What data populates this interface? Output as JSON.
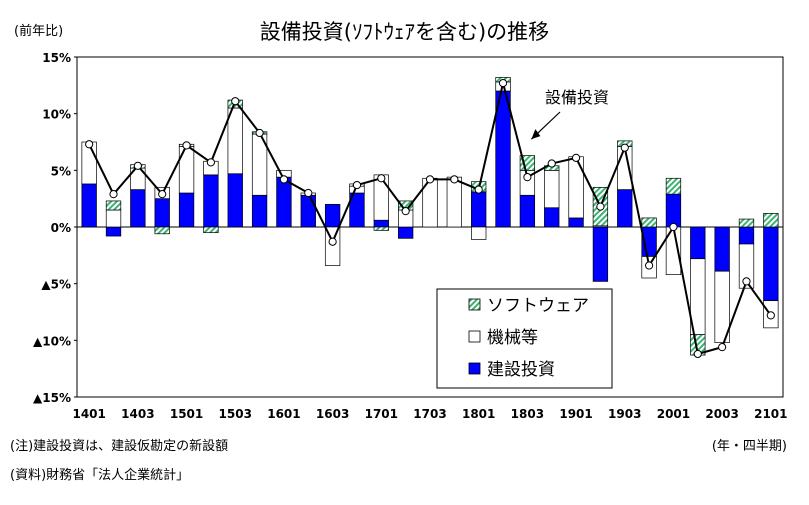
{
  "title": "設備投資(ｿﾌﾄｳｪｱを含む)の推移",
  "y_unit": "(前年比)",
  "note": "(注)建設投資は、建設仮勘定の新設額",
  "source": "(資料)財務省「法人企業統計」",
  "period_unit": "(年・四半期)",
  "colors": {
    "construction": "#0000ff",
    "software": "#3cb371",
    "machinery": "#ffffff",
    "line": "#000000"
  },
  "chart_data": {
    "type": "bar",
    "stacked": true,
    "categories": [
      "1401",
      "1402",
      "1403",
      "1404",
      "1501",
      "1502",
      "1503",
      "1504",
      "1601",
      "1602",
      "1603",
      "1604",
      "1701",
      "1702",
      "1703",
      "1704",
      "1801",
      "1802",
      "1803",
      "1804",
      "1901",
      "1902",
      "1903",
      "1904",
      "2001",
      "2002",
      "2003",
      "2004",
      "2101"
    ],
    "x_tick_labels": [
      "1401",
      "1403",
      "1501",
      "1503",
      "1601",
      "1603",
      "1701",
      "1703",
      "1801",
      "1803",
      "1901",
      "1903",
      "2001",
      "2003",
      "2101"
    ],
    "y_ticks": [
      "15%",
      "10%",
      "5%",
      "0%",
      "▲5%",
      "▲10%",
      "▲15%"
    ],
    "ylim": [
      -15,
      15
    ],
    "series": [
      {
        "name": "ソフトウェア",
        "key": "software",
        "values": [
          0,
          0.8,
          0.3,
          -0.6,
          0.2,
          -0.5,
          0.7,
          0.2,
          0,
          0,
          0,
          0.2,
          -0.3,
          0.8,
          0,
          0,
          0.9,
          0.4,
          1.3,
          0.4,
          0,
          3.4,
          0.5,
          0.8,
          1.4,
          -1.8,
          0,
          0.7,
          1.2
        ]
      },
      {
        "name": "機械等",
        "key": "machinery",
        "values": [
          3.7,
          1.5,
          1.9,
          1.0,
          4.1,
          1.2,
          5.8,
          5.4,
          0.6,
          0.2,
          -3.4,
          0.6,
          4.0,
          1.5,
          4.3,
          4.4,
          -1.1,
          0.8,
          2.2,
          3.3,
          5.4,
          0.1,
          3.8,
          -1.9,
          -4.2,
          -6.7,
          -6.3,
          -3.9,
          -2.4
        ]
      },
      {
        "name": "建設投資",
        "key": "construction",
        "values": [
          3.8,
          -0.8,
          3.3,
          2.5,
          3.0,
          4.6,
          4.7,
          2.8,
          4.4,
          2.8,
          2.0,
          3.0,
          0.6,
          -1.0,
          0,
          0,
          3.1,
          12.0,
          2.8,
          1.7,
          0.8,
          -4.8,
          3.3,
          -2.6,
          2.9,
          -2.8,
          -3.9,
          -1.5,
          -6.5
        ]
      }
    ],
    "line": {
      "name": "設備投資",
      "values": [
        7.3,
        2.9,
        5.4,
        2.9,
        7.2,
        5.7,
        11.1,
        8.3,
        4.2,
        3.0,
        -1.3,
        3.7,
        4.3,
        1.4,
        4.2,
        4.2,
        3.3,
        12.7,
        4.4,
        5.6,
        6.1,
        1.8,
        7.0,
        -3.4,
        0.0,
        -11.2,
        -10.6,
        -4.8,
        -7.8
      ]
    },
    "line_label": "設備投資",
    "legend_position": "bottom-right"
  }
}
